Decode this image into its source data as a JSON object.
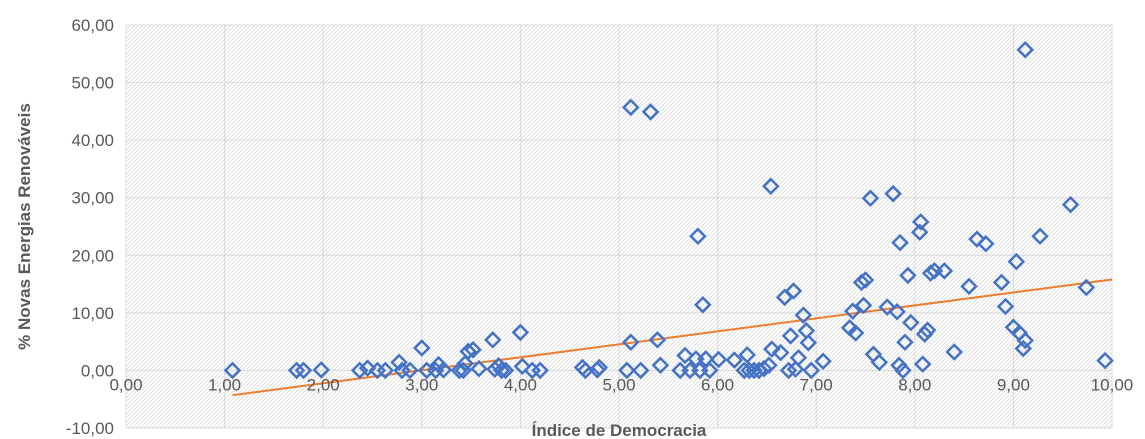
{
  "chart_data": {
    "type": "scatter",
    "xlabel": "Índice de Democracia",
    "ylabel": "% Novas Energias Renováveis",
    "xlim": [
      0,
      10
    ],
    "ylim": [
      -10,
      60
    ],
    "x_ticks": [
      "0,00",
      "1,00",
      "2,00",
      "3,00",
      "4,00",
      "5,00",
      "6,00",
      "7,00",
      "8,00",
      "9,00",
      "10,00"
    ],
    "y_ticks": [
      "-10,00",
      "0,00",
      "10,00",
      "20,00",
      "30,00",
      "40,00",
      "50,00",
      "60,00"
    ],
    "grid": true,
    "background": "diagonal hatch",
    "series": [
      {
        "marker": "diamond",
        "color": "#4472c4",
        "points": [
          [
            1.08,
            0.0
          ],
          [
            1.73,
            0.0
          ],
          [
            1.8,
            0.0
          ],
          [
            1.98,
            0.1
          ],
          [
            2.37,
            0.0
          ],
          [
            2.45,
            0.4
          ],
          [
            2.55,
            0.0
          ],
          [
            2.63,
            0.0
          ],
          [
            2.77,
            1.4
          ],
          [
            2.8,
            0.0
          ],
          [
            2.88,
            0.0
          ],
          [
            3.0,
            3.9
          ],
          [
            3.05,
            0.0
          ],
          [
            3.14,
            0.0
          ],
          [
            3.17,
            1.0
          ],
          [
            3.22,
            0.1
          ],
          [
            3.38,
            0.0
          ],
          [
            3.42,
            0.0
          ],
          [
            3.44,
            1.2
          ],
          [
            3.47,
            3.3
          ],
          [
            3.52,
            3.6
          ],
          [
            3.58,
            0.3
          ],
          [
            3.72,
            5.3
          ],
          [
            3.74,
            0.2
          ],
          [
            3.78,
            0.8
          ],
          [
            3.81,
            0.0
          ],
          [
            3.85,
            0.0
          ],
          [
            4.0,
            6.6
          ],
          [
            4.02,
            0.7
          ],
          [
            4.12,
            0.0
          ],
          [
            4.2,
            0.0
          ],
          [
            4.63,
            0.5
          ],
          [
            4.66,
            0.0
          ],
          [
            4.78,
            0.1
          ],
          [
            4.8,
            0.5
          ],
          [
            5.08,
            0.0
          ],
          [
            5.12,
            4.9
          ],
          [
            5.12,
            45.7
          ],
          [
            5.22,
            0.0
          ],
          [
            5.32,
            44.9
          ],
          [
            5.39,
            5.3
          ],
          [
            5.42,
            0.9
          ],
          [
            5.62,
            0.0
          ],
          [
            5.67,
            2.6
          ],
          [
            5.72,
            0.0
          ],
          [
            5.78,
            2.0
          ],
          [
            5.8,
            23.3
          ],
          [
            5.82,
            0.0
          ],
          [
            5.85,
            11.4
          ],
          [
            5.88,
            2.0
          ],
          [
            5.92,
            0.0
          ],
          [
            6.01,
            1.9
          ],
          [
            6.17,
            1.8
          ],
          [
            6.27,
            0.0
          ],
          [
            6.3,
            2.7
          ],
          [
            6.32,
            0.0
          ],
          [
            6.37,
            0.0
          ],
          [
            6.42,
            0.0
          ],
          [
            6.47,
            0.3
          ],
          [
            6.52,
            0.9
          ],
          [
            6.54,
            32.0
          ],
          [
            6.55,
            3.7
          ],
          [
            6.64,
            3.1
          ],
          [
            6.68,
            12.7
          ],
          [
            6.72,
            0.0
          ],
          [
            6.74,
            6.0
          ],
          [
            6.77,
            13.8
          ],
          [
            6.79,
            0.2
          ],
          [
            6.82,
            2.2
          ],
          [
            6.87,
            9.6
          ],
          [
            6.9,
            6.9
          ],
          [
            6.92,
            4.8
          ],
          [
            6.95,
            0.0
          ],
          [
            7.07,
            1.6
          ],
          [
            7.34,
            7.4
          ],
          [
            7.37,
            10.3
          ],
          [
            7.4,
            6.5
          ],
          [
            7.46,
            15.3
          ],
          [
            7.48,
            11.3
          ],
          [
            7.5,
            15.7
          ],
          [
            7.55,
            29.9
          ],
          [
            7.58,
            2.8
          ],
          [
            7.64,
            1.4
          ],
          [
            7.72,
            11.0
          ],
          [
            7.78,
            30.7
          ],
          [
            7.82,
            10.2
          ],
          [
            7.84,
            0.9
          ],
          [
            7.85,
            22.2
          ],
          [
            7.88,
            0.0
          ],
          [
            7.93,
            16.5
          ],
          [
            7.96,
            8.3
          ],
          [
            7.9,
            4.9
          ],
          [
            8.05,
            24.0
          ],
          [
            8.06,
            25.8
          ],
          [
            8.08,
            1.1
          ],
          [
            8.1,
            6.3
          ],
          [
            8.13,
            7.0
          ],
          [
            8.16,
            16.9
          ],
          [
            8.2,
            17.3
          ],
          [
            8.3,
            17.3
          ],
          [
            8.4,
            3.2
          ],
          [
            8.55,
            14.6
          ],
          [
            8.63,
            22.8
          ],
          [
            8.72,
            22.0
          ],
          [
            8.88,
            15.3
          ],
          [
            8.92,
            11.1
          ],
          [
            9.0,
            7.5
          ],
          [
            9.03,
            18.9
          ],
          [
            9.06,
            6.5
          ],
          [
            9.1,
            3.8
          ],
          [
            9.12,
            5.2
          ],
          [
            9.12,
            55.7
          ],
          [
            9.27,
            23.3
          ],
          [
            9.58,
            28.8
          ],
          [
            9.74,
            14.4
          ],
          [
            9.93,
            1.7
          ]
        ]
      }
    ],
    "trendline": {
      "type": "linear",
      "color": "#ed7d31",
      "x": [
        1.08,
        10.0
      ],
      "y": [
        -4.3,
        15.8
      ]
    }
  }
}
